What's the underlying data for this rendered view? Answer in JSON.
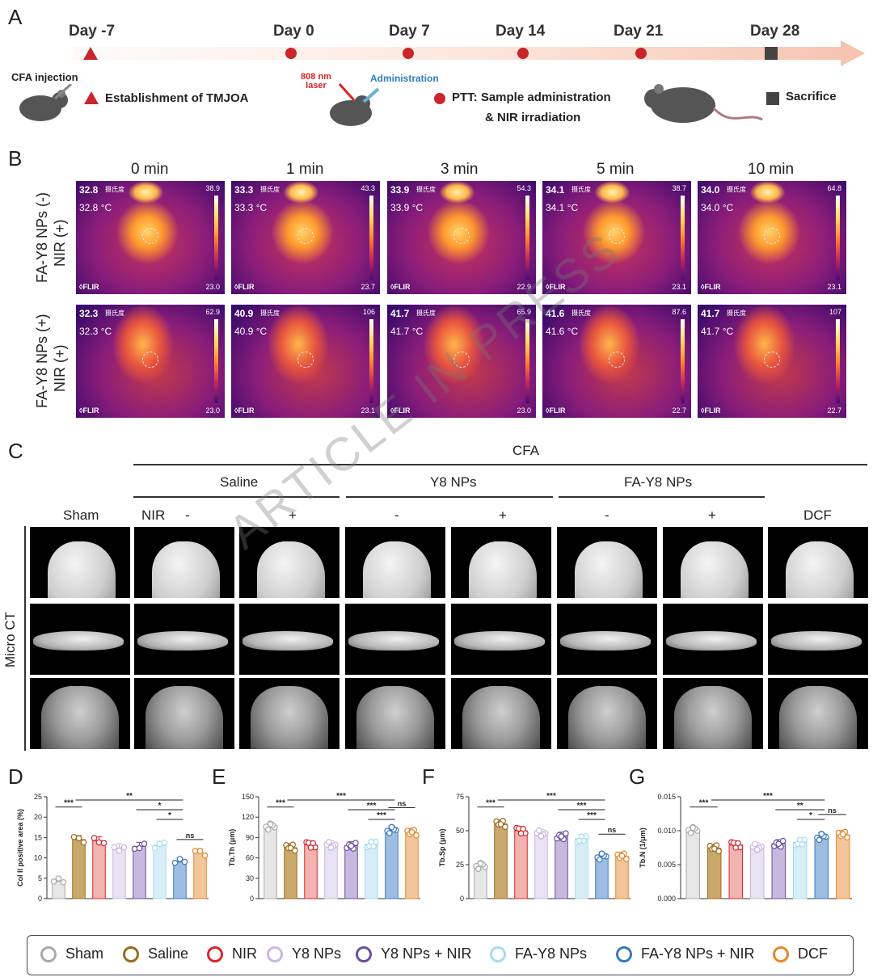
{
  "panels": {
    "A": "A",
    "B": "B",
    "C": "C",
    "D": "D",
    "E": "E",
    "F": "F",
    "G": "G"
  },
  "timeline": {
    "days": [
      "Day -7",
      "Day 0",
      "Day 7",
      "Day 14",
      "Day 21",
      "Day 28"
    ],
    "cfa_injection": "CFA injection",
    "establishment": "Establishment of TMJOA",
    "laser": "808 nm laser",
    "administration": "Administration",
    "ptt_line1": "PTT: Sample administration",
    "ptt_line2": "& NIR irradiation",
    "sacrifice": "Sacrifice",
    "colors": {
      "marker": "#c8252c",
      "arrow": "#f6c9b8",
      "sacrifice": "#444444"
    }
  },
  "thermal": {
    "times": [
      "0 min",
      "1 min",
      "3 min",
      "5 min",
      "10 min"
    ],
    "rows": [
      {
        "label1": "FA-Y8 NPs (-)",
        "label2": "NIR (+)",
        "cells": [
          {
            "big": "32.8",
            "small": "32.8 °C",
            "max": "38.9",
            "min": "23.0"
          },
          {
            "big": "33.3",
            "small": "33.3 °C",
            "max": "43.3",
            "min": "23.7"
          },
          {
            "big": "33.9",
            "small": "33.9 °C",
            "max": "54.3",
            "min": "22.9"
          },
          {
            "big": "34.1",
            "small": "34.1 °C",
            "max": "38.7",
            "min": "23.1"
          },
          {
            "big": "34.0",
            "small": "34.0 °C",
            "max": "64.8",
            "min": "23.1"
          }
        ]
      },
      {
        "label1": "FA-Y8 NPs (+)",
        "label2": "NIR (+)",
        "cells": [
          {
            "big": "32.3",
            "small": "32.3 °C",
            "max": "62.9",
            "min": "23.0"
          },
          {
            "big": "40.9",
            "small": "40.9 °C",
            "max": "106",
            "min": "23.1"
          },
          {
            "big": "41.7",
            "small": "41.7 °C",
            "max": "65.9",
            "min": "23.0"
          },
          {
            "big": "41.6",
            "small": "41.6 °C",
            "max": "87.6",
            "min": "22.7"
          },
          {
            "big": "41.7",
            "small": "41.7 °C",
            "max": "107",
            "min": "22.7"
          }
        ]
      }
    ],
    "flir": "◊FLIR",
    "unit_tag": "摄氏度"
  },
  "microct": {
    "cfa": "CFA",
    "saline": "Saline",
    "y8": "Y8 NPs",
    "fay8": "FA-Y8 NPs",
    "sham": "Sham",
    "nir": "NIR",
    "minus": "-",
    "plus": "+",
    "dcf": "DCF",
    "row_label": "Micro CT"
  },
  "watermark": "ARTICLE IN PRESS",
  "chart_data": [
    {
      "type": "bar",
      "panel": "D",
      "ylabel": "Col II positive area (%)",
      "ylim": [
        0,
        25
      ],
      "yticks": [
        "0",
        "5",
        "10",
        "15",
        "20",
        "25"
      ],
      "categories": [
        "Sham",
        "Saline",
        "NIR",
        "Y8 NPs",
        "Y8 NPs + NIR",
        "FA-Y8 NPs",
        "FA-Y8 NPs + NIR",
        "DCF"
      ],
      "values": [
        4.2,
        14.5,
        14.2,
        12.5,
        12.8,
        13.1,
        9.0,
        11.2
      ],
      "sig": [
        {
          "from": 0,
          "to": 1,
          "label": "***"
        },
        {
          "from": 1,
          "to": 6,
          "label": "**"
        },
        {
          "from": 4,
          "to": 6,
          "label": "*"
        },
        {
          "from": 5,
          "to": 6,
          "label": "*"
        },
        {
          "from": 6,
          "to": 7,
          "label": "ns"
        }
      ]
    },
    {
      "type": "bar",
      "panel": "E",
      "ylabel": "Tb.Th (μm)",
      "ylim": [
        0,
        150
      ],
      "yticks": [
        "0",
        "30",
        "60",
        "90",
        "120",
        "150"
      ],
      "categories": [
        "Sham",
        "Saline",
        "NIR",
        "Y8 NPs",
        "Y8 NPs + NIR",
        "FA-Y8 NPs",
        "FA-Y8 NPs + NIR",
        "DCF"
      ],
      "values": [
        106,
        75,
        79,
        79,
        78,
        80,
        101,
        97
      ],
      "sig": [
        {
          "from": 0,
          "to": 1,
          "label": "***"
        },
        {
          "from": 1,
          "to": 6,
          "label": "***"
        },
        {
          "from": 4,
          "to": 6,
          "label": "***"
        },
        {
          "from": 5,
          "to": 6,
          "label": "***"
        },
        {
          "from": 6,
          "to": 7,
          "label": "ns"
        }
      ]
    },
    {
      "type": "bar",
      "panel": "F",
      "ylabel": "Tb.Sp (μm)",
      "ylim": [
        0,
        75
      ],
      "yticks": [
        "0",
        "25",
        "50",
        "75"
      ],
      "categories": [
        "Sham",
        "Saline",
        "NIR",
        "Y8 NPs",
        "Y8 NPs + NIR",
        "FA-Y8 NPs",
        "FA-Y8 NPs + NIR",
        "DCF"
      ],
      "values": [
        24,
        55,
        50,
        48,
        46,
        44,
        31,
        31
      ],
      "sig": [
        {
          "from": 0,
          "to": 1,
          "label": "***"
        },
        {
          "from": 1,
          "to": 6,
          "label": "***"
        },
        {
          "from": 4,
          "to": 6,
          "label": "***"
        },
        {
          "from": 5,
          "to": 6,
          "label": "***"
        },
        {
          "from": 6,
          "to": 7,
          "label": "ns"
        }
      ]
    },
    {
      "type": "bar",
      "panel": "G",
      "ylabel": "Tb.N (1/μm)",
      "ylim": [
        0,
        0.015
      ],
      "yticks": [
        "0.000",
        "0.005",
        "0.010",
        "0.015"
      ],
      "categories": [
        "Sham",
        "Saline",
        "NIR",
        "Y8 NPs",
        "Y8 NPs + NIR",
        "FA-Y8 NPs",
        "FA-Y8 NPs + NIR",
        "DCF"
      ],
      "values": [
        0.0101,
        0.0074,
        0.0079,
        0.0076,
        0.0081,
        0.0083,
        0.0091,
        0.0094
      ],
      "sig": [
        {
          "from": 0,
          "to": 1,
          "label": "***"
        },
        {
          "from": 1,
          "to": 6,
          "label": "***"
        },
        {
          "from": 4,
          "to": 6,
          "label": "**"
        },
        {
          "from": 5,
          "to": 6,
          "label": "*"
        },
        {
          "from": 6,
          "to": 7,
          "label": "ns"
        }
      ]
    }
  ],
  "legend": [
    {
      "label": "Sham",
      "color": "#a9a9a9"
    },
    {
      "label": "Saline",
      "color": "#9c6b1e"
    },
    {
      "label": "NIR",
      "color": "#d9262c"
    },
    {
      "label": "Y8 NPs",
      "color": "#c9b8e0"
    },
    {
      "label": "Y8 NPs + NIR",
      "color": "#6a4fa3"
    },
    {
      "label": "FA-Y8 NPs",
      "color": "#a6dcef"
    },
    {
      "label": "FA-Y8 NPs + NIR",
      "color": "#3b78c2"
    },
    {
      "label": "DCF",
      "color": "#e8862a"
    }
  ]
}
